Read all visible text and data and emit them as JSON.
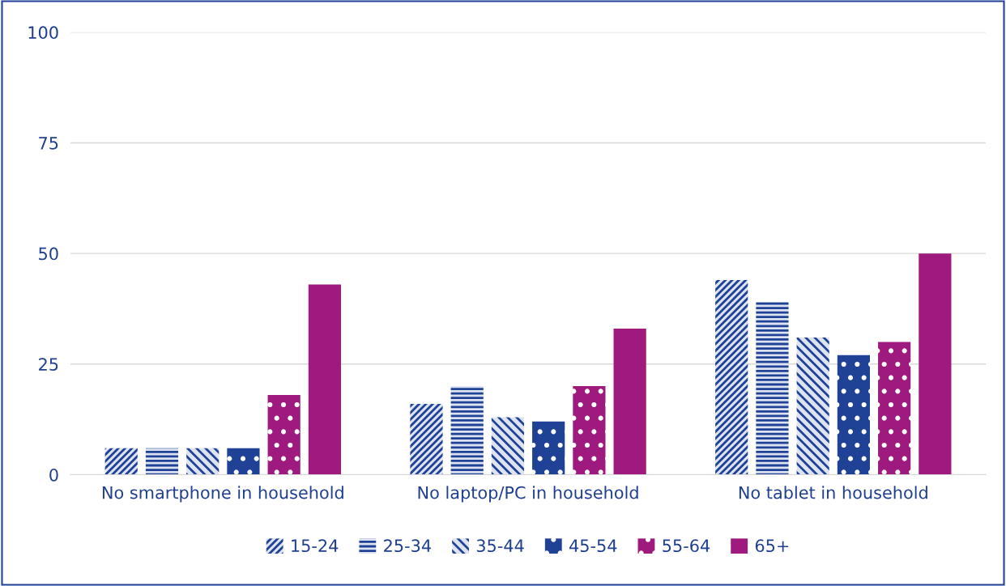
{
  "chart_data": {
    "type": "bar",
    "categories": [
      "No smartphone in household",
      "No laptop/PC in household",
      "No tablet in household"
    ],
    "series": [
      {
        "name": "15-24",
        "color": "#1f4196",
        "values": [
          6,
          16,
          44
        ]
      },
      {
        "name": "25-34",
        "color": "#1f4196",
        "values": [
          6,
          20,
          39
        ]
      },
      {
        "name": "35-44",
        "color": "#1f4196",
        "values": [
          6,
          13,
          31
        ]
      },
      {
        "name": "45-54",
        "color": "#1f4196",
        "values": [
          6,
          12,
          27
        ]
      },
      {
        "name": "55-64",
        "color": "#9e1a7e",
        "values": [
          18,
          20,
          30
        ]
      },
      {
        "name": "65+",
        "color": "#9e1a7e",
        "values": [
          43,
          33,
          50
        ]
      }
    ],
    "ylim": [
      0,
      100
    ],
    "yticks": [
      0,
      25,
      50,
      75,
      100
    ],
    "grid": "y",
    "legend": "bottom"
  }
}
